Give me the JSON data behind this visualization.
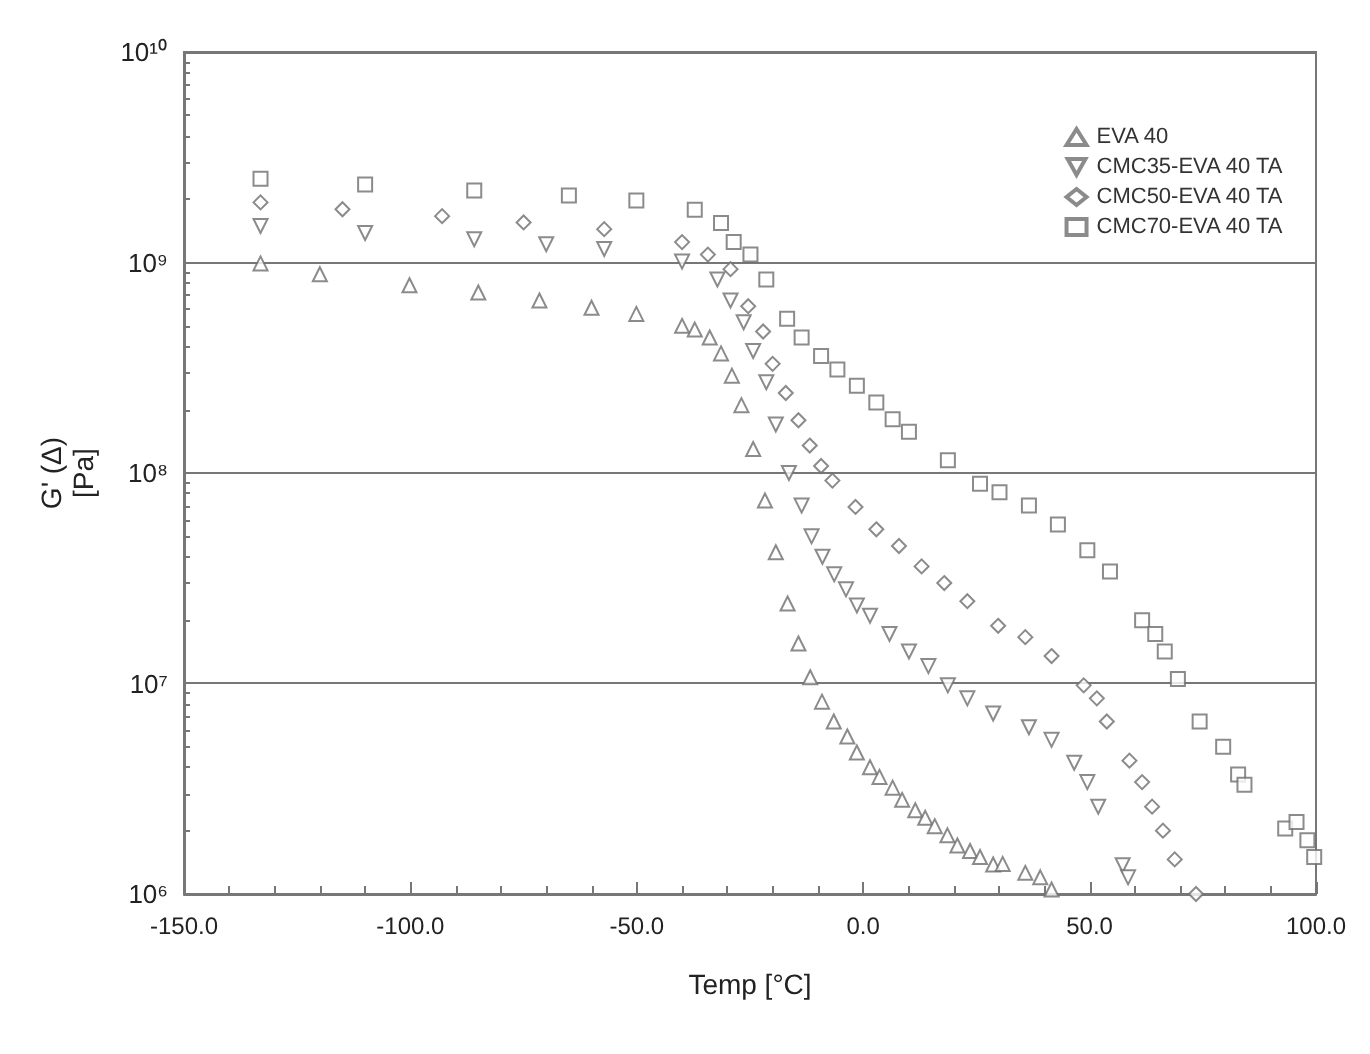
{
  "chart_data": {
    "type": "scatter",
    "xlabel": "Temp [°C]",
    "ylabel": "G' (Δ)\n[Pa]",
    "log": "y",
    "grid": "y",
    "legend": "top right",
    "xlim": [
      -150,
      100
    ],
    "xticks": [
      {
        "value": -150,
        "label": "-150.0"
      },
      {
        "value": -100,
        "label": "-100.0"
      },
      {
        "value": -50,
        "label": "-50.0"
      },
      {
        "value": 0,
        "label": "0.0"
      },
      {
        "value": 50,
        "label": "50.0"
      },
      {
        "value": 100,
        "label": "100.0"
      }
    ],
    "ylim": [
      1000000,
      10000000000
    ],
    "yticks": [
      {
        "value": 1000000,
        "label": "10⁶"
      },
      {
        "value": 10000000,
        "label": "10⁷"
      },
      {
        "value": 100000000,
        "label": "10⁸"
      },
      {
        "value": 1000000000,
        "label": "10⁹"
      },
      {
        "value": 10000000000,
        "label": "10¹⁰"
      }
    ],
    "series": [
      {
        "name": "EVA 40",
        "color": "#6e6e6e",
        "marker": "triangle",
        "x": [
          -133.1,
          -120,
          -100.2,
          -85,
          -71.5,
          -60,
          -50.1,
          -40,
          -37.2,
          -33.9,
          -31.4,
          -29.0,
          -26.9,
          -24.3,
          -21.7,
          -19.3,
          -16.7,
          -14.3,
          -11.7,
          -9.1,
          -6.5,
          -3.5,
          -1.4,
          1.5,
          3.6,
          6.5,
          8.6,
          11.5,
          13.7,
          15.8,
          18.6,
          20.8,
          23.6,
          25.8,
          28.7,
          30.8,
          35.8,
          39.1,
          41.6
        ],
        "values": [
          990000000,
          880000000,
          780000000,
          720000000,
          660000000,
          610000000,
          570000000,
          500000000,
          480000000,
          440000000,
          370000000,
          290000000,
          210000000,
          130000000,
          74000000,
          42000000,
          24000000,
          15500000,
          10700000,
          8200000,
          6600000,
          5600000,
          4700000,
          4000000,
          3600000,
          3200000,
          2800000,
          2500000,
          2300000,
          2100000,
          1900000,
          1700000,
          1600000,
          1500000,
          1380000,
          1390000,
          1260000,
          1200000,
          1050000
        ]
      },
      {
        "name": "CMC35-EVA 40 TA",
        "color": "#6e6e6e",
        "marker": "triangle-down",
        "x": [
          -133.1,
          -110,
          -85.9,
          -70,
          -57.2,
          -40,
          -32.2,
          -29.3,
          -26.4,
          -24.3,
          -21.4,
          -19.3,
          -16.4,
          -13.6,
          -11.4,
          -9.0,
          -6.4,
          -3.8,
          -1.4,
          1.5,
          5.8,
          10.1,
          14.4,
          18.7,
          23.0,
          28.7,
          36.6,
          41.6,
          46.6,
          49.5,
          51.9,
          57.3,
          58.5
        ],
        "values": [
          1490000000,
          1380000000,
          1290000000,
          1220000000,
          1160000000,
          1010000000,
          830000000,
          660000000,
          520000000,
          380000000,
          270000000,
          170000000,
          100000000,
          70000000,
          50000000,
          40000000,
          33000000,
          28000000,
          23500000,
          21000000,
          17200000,
          14200000,
          12100000,
          9800000,
          8500000,
          7200000,
          6200000,
          5400000,
          4200000,
          3400000,
          2600000,
          1370000,
          1200000
        ]
      },
      {
        "name": "CMC50-EVA 40 TA",
        "color": "#6e6e6e",
        "marker": "diamond",
        "x": [
          -133.1,
          -115,
          -93,
          -75,
          -57.2,
          -40,
          -34.3,
          -29.3,
          -25.4,
          -22.1,
          -20,
          -17.1,
          -14.3,
          -11.8,
          -9.3,
          -6.8,
          -1.7,
          2.9,
          7.9,
          12.9,
          17.9,
          23.0,
          29.8,
          35.8,
          41.6,
          48.7,
          51.6,
          53.8,
          58.8,
          61.6,
          63.8,
          66.2,
          68.8,
          73.5
        ],
        "values": [
          1930000000,
          1790000000,
          1660000000,
          1550000000,
          1440000000,
          1250000000,
          1090000000,
          930000000,
          620000000,
          470000000,
          330000000,
          240000000,
          178000000,
          135000000,
          108000000,
          92000000,
          69000000,
          54000000,
          45000000,
          36000000,
          30000000,
          24600000,
          18800000,
          16600000,
          13500000,
          9800000,
          8500000,
          6600000,
          4300000,
          3400000,
          2600000,
          2000000,
          1460000,
          1000000
        ]
      },
      {
        "name": "CMC70-EVA 40 TA",
        "color": "#6e6e6e",
        "marker": "square",
        "x": [
          -133.1,
          -110,
          -85.9,
          -65,
          -50.1,
          -37.2,
          -31.4,
          -28.6,
          -24.9,
          -21.4,
          -16.8,
          -13.6,
          -9.3,
          -5.7,
          -1.4,
          2.9,
          6.5,
          10.1,
          18.7,
          25.8,
          30.1,
          36.6,
          43.0,
          49.5,
          54.5,
          61.6,
          64.5,
          66.6,
          69.5,
          74.3,
          79.5,
          82.8,
          84.2,
          93.2,
          95.7,
          98.1,
          99.6
        ],
        "values": [
          2500000000,
          2350000000,
          2200000000,
          2080000000,
          1970000000,
          1780000000,
          1540000000,
          1250000000,
          1090000000,
          830000000,
          540000000,
          440000000,
          360000000,
          310000000,
          260000000,
          216000000,
          180000000,
          157000000,
          115000000,
          89000000,
          81000000,
          70000000,
          57000000,
          43000000,
          34000000,
          20000000,
          17200000,
          14200000,
          10500000,
          6600000,
          5000000,
          3700000,
          3300000,
          2050000,
          2200000,
          1800000,
          1500000
        ]
      }
    ]
  }
}
